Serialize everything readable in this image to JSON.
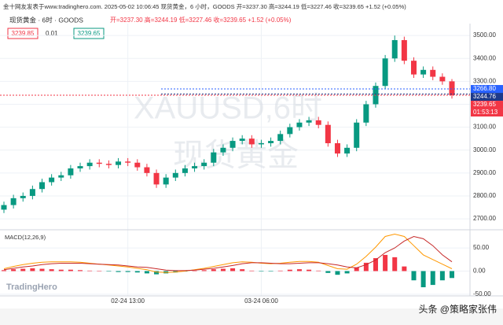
{
  "header": {
    "line1": "金十网友发表于www.tradinghero.com. 2025-05-02 10:06:45 现货黄金，6 小时，GOODS 开=3237.30 高=3244.19 低=3227.46 收=3239.65 +1.52 (+0.05%)",
    "symbol": "现货黄金 · 6时 · GOODS",
    "ohlc": "开=3237.30 高=3244.19 低=3227.46 收=3239.65 +1.52 (+0.05%)",
    "bid": "3239.85",
    "spread": "0.01",
    "ask": "3239.65"
  },
  "watermark": [
    "XAUUSD,6时",
    "现货黄金"
  ],
  "brand": "TradingHero",
  "credit": "头条 @策略家张伟",
  "chart_data": [
    {
      "type": "candlestick",
      "up_color": "#089981",
      "down_color": "#f23645",
      "grid": true,
      "categories": [
        null,
        null,
        null,
        null,
        null,
        null,
        null,
        null,
        null,
        null,
        null,
        null,
        null,
        "02-24 13:00",
        null,
        null,
        null,
        null,
        null,
        null,
        null,
        null,
        null,
        null,
        null,
        null,
        null,
        "03-24 06:00",
        null,
        null,
        null,
        null,
        null,
        null,
        null,
        null,
        null,
        null,
        null,
        null,
        null,
        null,
        null,
        null,
        null,
        null,
        null,
        null
      ],
      "open": [
        2740,
        2760,
        2790,
        2800,
        2830,
        2860,
        2880,
        2890,
        2920,
        2930,
        2945,
        2940,
        2935,
        2950,
        2945,
        2925,
        2900,
        2850,
        2880,
        2900,
        2920,
        2930,
        2945,
        2990,
        3010,
        3040,
        3050,
        3025,
        3030,
        3040,
        3070,
        3100,
        3120,
        3130,
        3110,
        3030,
        2985,
        3010,
        3120,
        3200,
        3280,
        3400,
        3480,
        3390,
        3330,
        3350,
        3320,
        3300
      ],
      "high": [
        2775,
        2805,
        2815,
        2845,
        2875,
        2895,
        2905,
        2935,
        2945,
        2960,
        2960,
        2955,
        2965,
        2965,
        2960,
        2940,
        2915,
        2895,
        2915,
        2935,
        2945,
        2960,
        3005,
        3025,
        3055,
        3065,
        3065,
        3045,
        3055,
        3085,
        3115,
        3135,
        3145,
        3145,
        3125,
        3045,
        3025,
        3135,
        3215,
        3295,
        3415,
        3500,
        3495,
        3405,
        3365,
        3365,
        3335,
        3310
      ],
      "low": [
        2725,
        2745,
        2775,
        2785,
        2815,
        2845,
        2865,
        2875,
        2905,
        2915,
        2925,
        2920,
        2920,
        2930,
        2910,
        2885,
        2835,
        2835,
        2865,
        2885,
        2905,
        2915,
        2930,
        2975,
        2995,
        3025,
        3010,
        3010,
        3015,
        3025,
        3055,
        3085,
        3105,
        3095,
        3015,
        2970,
        2970,
        2995,
        3105,
        3185,
        3265,
        3385,
        3375,
        3315,
        3315,
        3305,
        3285,
        3225
      ],
      "close": [
        2760,
        2790,
        2800,
        2830,
        2860,
        2880,
        2890,
        2920,
        2930,
        2945,
        2940,
        2935,
        2950,
        2945,
        2925,
        2900,
        2850,
        2880,
        2900,
        2920,
        2930,
        2945,
        2990,
        3010,
        3040,
        3050,
        3025,
        3030,
        3040,
        3070,
        3100,
        3120,
        3130,
        3110,
        3030,
        2985,
        3010,
        3120,
        3200,
        3280,
        3400,
        3480,
        3390,
        3330,
        3350,
        3320,
        3300,
        3239.65
      ],
      "ylim": [
        2659,
        3552
      ],
      "yticks": [
        {
          "value": 2700,
          "label": "2700.00"
        },
        {
          "value": 2800,
          "label": "2800.00"
        },
        {
          "value": 2900,
          "label": "2900.00"
        },
        {
          "value": 3000,
          "label": "3000.00"
        },
        {
          "value": 3100,
          "label": "3100.00"
        },
        {
          "value": 3200,
          "label": "3200.00"
        },
        {
          "value": 3300,
          "label": "3300.00"
        },
        {
          "value": 3400,
          "label": "3400.00"
        },
        {
          "value": 3500,
          "label": "3500.00"
        }
      ],
      "price_lines": [
        {
          "value": 3266.8,
          "label": "3266.80",
          "color": "#2962ff"
        },
        {
          "value": 3244.76,
          "label": "3244.76",
          "color": "#1e3a8a"
        },
        {
          "value": 3239.65,
          "label": "3239.65",
          "color": "#f23645"
        }
      ],
      "countdown": "01:53:13"
    },
    {
      "type": "macd",
      "title": "MACD(12,26,9)",
      "ylim": [
        -52,
        86
      ],
      "yticks": [
        {
          "value": 50,
          "label": "50.00"
        },
        {
          "value": 0,
          "label": "0.00"
        },
        {
          "value": -50,
          "label": "-50.00"
        }
      ],
      "hist_up_color": "#f23645",
      "hist_down_color": "#089981",
      "histogram": [
        2,
        4,
        5,
        6,
        5,
        4,
        3,
        3,
        2,
        1,
        0,
        -1,
        -2,
        -2,
        -3,
        -5,
        -7,
        -5,
        -3,
        -1,
        1,
        2,
        4,
        5,
        6,
        4,
        1,
        -1,
        -1,
        1,
        3,
        4,
        3,
        1,
        -4,
        -8,
        -5,
        8,
        18,
        28,
        35,
        30,
        10,
        -20,
        -35,
        -30,
        -20,
        -15
      ],
      "series": [
        {
          "color": "#ff9800",
          "values": [
            5,
            10,
            14,
            17,
            19,
            20,
            20,
            20,
            19,
            17,
            15,
            13,
            11,
            9,
            6,
            3,
            -2,
            -3,
            -2,
            0,
            3,
            6,
            10,
            14,
            18,
            20,
            19,
            17,
            16,
            17,
            19,
            21,
            21,
            19,
            12,
            5,
            4,
            15,
            32,
            52,
            75,
            80,
            75,
            55,
            35,
            25,
            15,
            5
          ]
        },
        {
          "color": "#c62828",
          "values": [
            3,
            6,
            9,
            11,
            14,
            16,
            17,
            17,
            17,
            16,
            15,
            14,
            13,
            11,
            9,
            8,
            5,
            2,
            1,
            1,
            2,
            4,
            6,
            9,
            12,
            16,
            18,
            18,
            17,
            16,
            16,
            17,
            18,
            18,
            16,
            13,
            9,
            7,
            14,
            24,
            40,
            50,
            65,
            75,
            70,
            55,
            35,
            20
          ]
        }
      ]
    }
  ]
}
